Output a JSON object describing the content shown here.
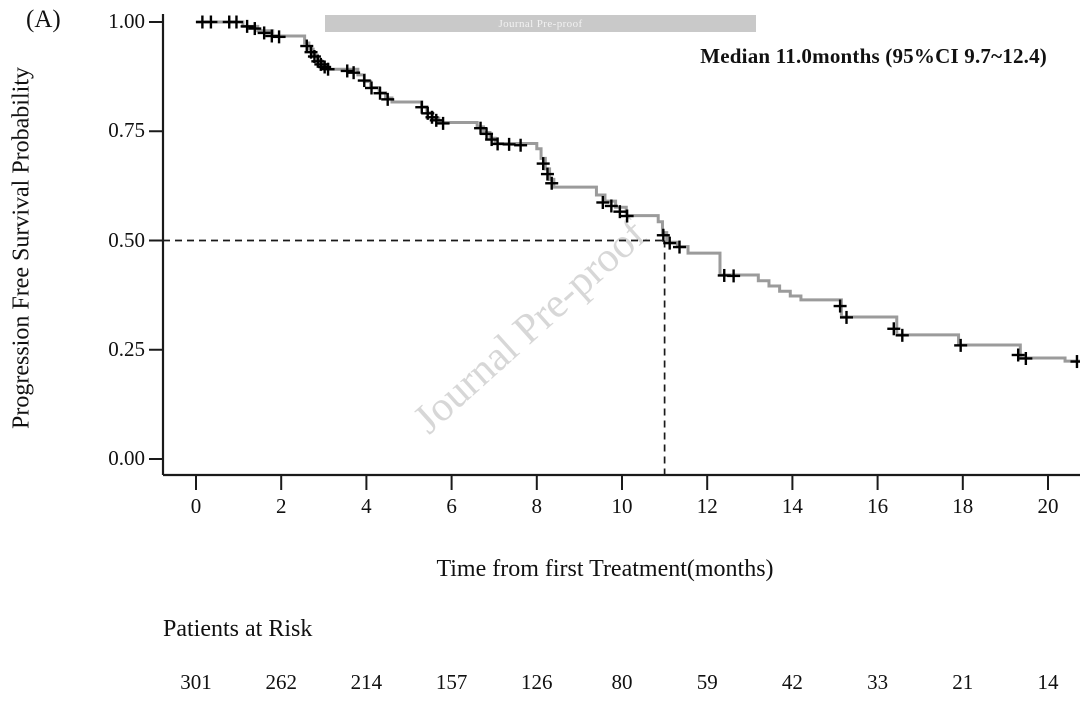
{
  "panel_label": "(A)",
  "watermark": {
    "banner_text": "Journal Pre-proof",
    "diagonal_text": "Journal Pre-proof",
    "banner_bg_color": "#c9c9c9",
    "banner_text_color": "#f2f2f2",
    "diagonal_text_color": "#d7d7d7"
  },
  "annotation": {
    "median_text": "Median 11.0months (95%CI 9.7~12.4)"
  },
  "chart_data": {
    "type": "line",
    "subtype": "kaplan-meier-step",
    "title": "",
    "xlabel": "Time from first Treatment(months)",
    "ylabel": "Progression Free Survival Probability",
    "xlim": [
      0,
      20.75
    ],
    "ylim": [
      0.0,
      1.0
    ],
    "grid": false,
    "x_ticks": [
      0,
      2,
      4,
      6,
      8,
      10,
      12,
      14,
      16,
      18,
      20
    ],
    "y_ticks": [
      0.0,
      0.25,
      0.5,
      0.75,
      1.0
    ],
    "y_tick_labels": [
      "0.00",
      "0.25",
      "0.50",
      "0.75",
      "1.00"
    ],
    "line_color": "#9b9b9b",
    "censor_color": "#000000",
    "axis_color": "#1a1a1a",
    "median_reference": {
      "x": 11.0,
      "y": 0.5
    },
    "end_time": 20.75,
    "steps": [
      [
        0,
        1.0
      ],
      [
        1.1,
        0.99
      ],
      [
        1.45,
        0.98
      ],
      [
        1.8,
        0.968
      ],
      [
        2.55,
        0.952
      ],
      [
        2.65,
        0.938
      ],
      [
        2.75,
        0.924
      ],
      [
        2.85,
        0.912
      ],
      [
        2.95,
        0.902
      ],
      [
        3.1,
        0.892
      ],
      [
        3.8,
        0.879
      ],
      [
        3.95,
        0.864
      ],
      [
        4.1,
        0.85
      ],
      [
        4.3,
        0.838
      ],
      [
        4.45,
        0.826
      ],
      [
        4.6,
        0.817
      ],
      [
        5.3,
        0.806
      ],
      [
        5.42,
        0.792
      ],
      [
        5.55,
        0.78
      ],
      [
        5.7,
        0.77
      ],
      [
        6.6,
        0.76
      ],
      [
        6.75,
        0.747
      ],
      [
        6.9,
        0.734
      ],
      [
        7.02,
        0.722
      ],
      [
        8.0,
        0.71
      ],
      [
        8.1,
        0.688
      ],
      [
        8.2,
        0.664
      ],
      [
        8.3,
        0.64
      ],
      [
        8.4,
        0.622
      ],
      [
        9.4,
        0.604
      ],
      [
        9.6,
        0.59
      ],
      [
        9.85,
        0.576
      ],
      [
        10.1,
        0.557
      ],
      [
        10.85,
        0.543
      ],
      [
        10.95,
        0.518
      ],
      [
        11.05,
        0.496
      ],
      [
        11.3,
        0.486
      ],
      [
        11.55,
        0.471
      ],
      [
        12.3,
        0.421
      ],
      [
        13.2,
        0.408
      ],
      [
        13.45,
        0.396
      ],
      [
        13.7,
        0.384
      ],
      [
        13.95,
        0.373
      ],
      [
        14.2,
        0.364
      ],
      [
        15.15,
        0.325
      ],
      [
        16.45,
        0.284
      ],
      [
        17.9,
        0.261
      ],
      [
        19.35,
        0.231
      ],
      [
        20.4,
        0.224
      ]
    ],
    "censors": [
      [
        0.15,
        1.0
      ],
      [
        0.35,
        1.0
      ],
      [
        0.78,
        1.0
      ],
      [
        0.95,
        1.0
      ],
      [
        1.2,
        0.99
      ],
      [
        1.38,
        0.985
      ],
      [
        1.6,
        0.975
      ],
      [
        1.78,
        0.968
      ],
      [
        1.95,
        0.966
      ],
      [
        2.6,
        0.945
      ],
      [
        2.7,
        0.931
      ],
      [
        2.78,
        0.921
      ],
      [
        2.86,
        0.91
      ],
      [
        2.93,
        0.903
      ],
      [
        3.02,
        0.897
      ],
      [
        3.1,
        0.892
      ],
      [
        3.55,
        0.888
      ],
      [
        3.7,
        0.884
      ],
      [
        3.95,
        0.866
      ],
      [
        4.12,
        0.849
      ],
      [
        4.32,
        0.837
      ],
      [
        4.5,
        0.823
      ],
      [
        5.3,
        0.805
      ],
      [
        5.44,
        0.791
      ],
      [
        5.54,
        0.782
      ],
      [
        5.64,
        0.775
      ],
      [
        5.8,
        0.768
      ],
      [
        6.68,
        0.757
      ],
      [
        6.82,
        0.744
      ],
      [
        6.94,
        0.731
      ],
      [
        7.08,
        0.721
      ],
      [
        7.35,
        0.72
      ],
      [
        7.62,
        0.718
      ],
      [
        8.15,
        0.676
      ],
      [
        8.25,
        0.652
      ],
      [
        8.35,
        0.631
      ],
      [
        9.55,
        0.587
      ],
      [
        9.75,
        0.579
      ],
      [
        9.95,
        0.566
      ],
      [
        10.12,
        0.556
      ],
      [
        10.97,
        0.512
      ],
      [
        11.12,
        0.494
      ],
      [
        11.35,
        0.485
      ],
      [
        12.4,
        0.42
      ],
      [
        12.62,
        0.419
      ],
      [
        15.12,
        0.35
      ],
      [
        15.27,
        0.324
      ],
      [
        16.38,
        0.298
      ],
      [
        16.58,
        0.283
      ],
      [
        17.95,
        0.26
      ],
      [
        19.3,
        0.238
      ],
      [
        19.48,
        0.23
      ],
      [
        20.68,
        0.223
      ]
    ],
    "at_risk": {
      "label": "Patients at Risk",
      "times": [
        0,
        2,
        4,
        6,
        8,
        10,
        12,
        14,
        16,
        18,
        20
      ],
      "counts": [
        301,
        262,
        214,
        157,
        126,
        80,
        59,
        42,
        33,
        21,
        14
      ]
    }
  }
}
